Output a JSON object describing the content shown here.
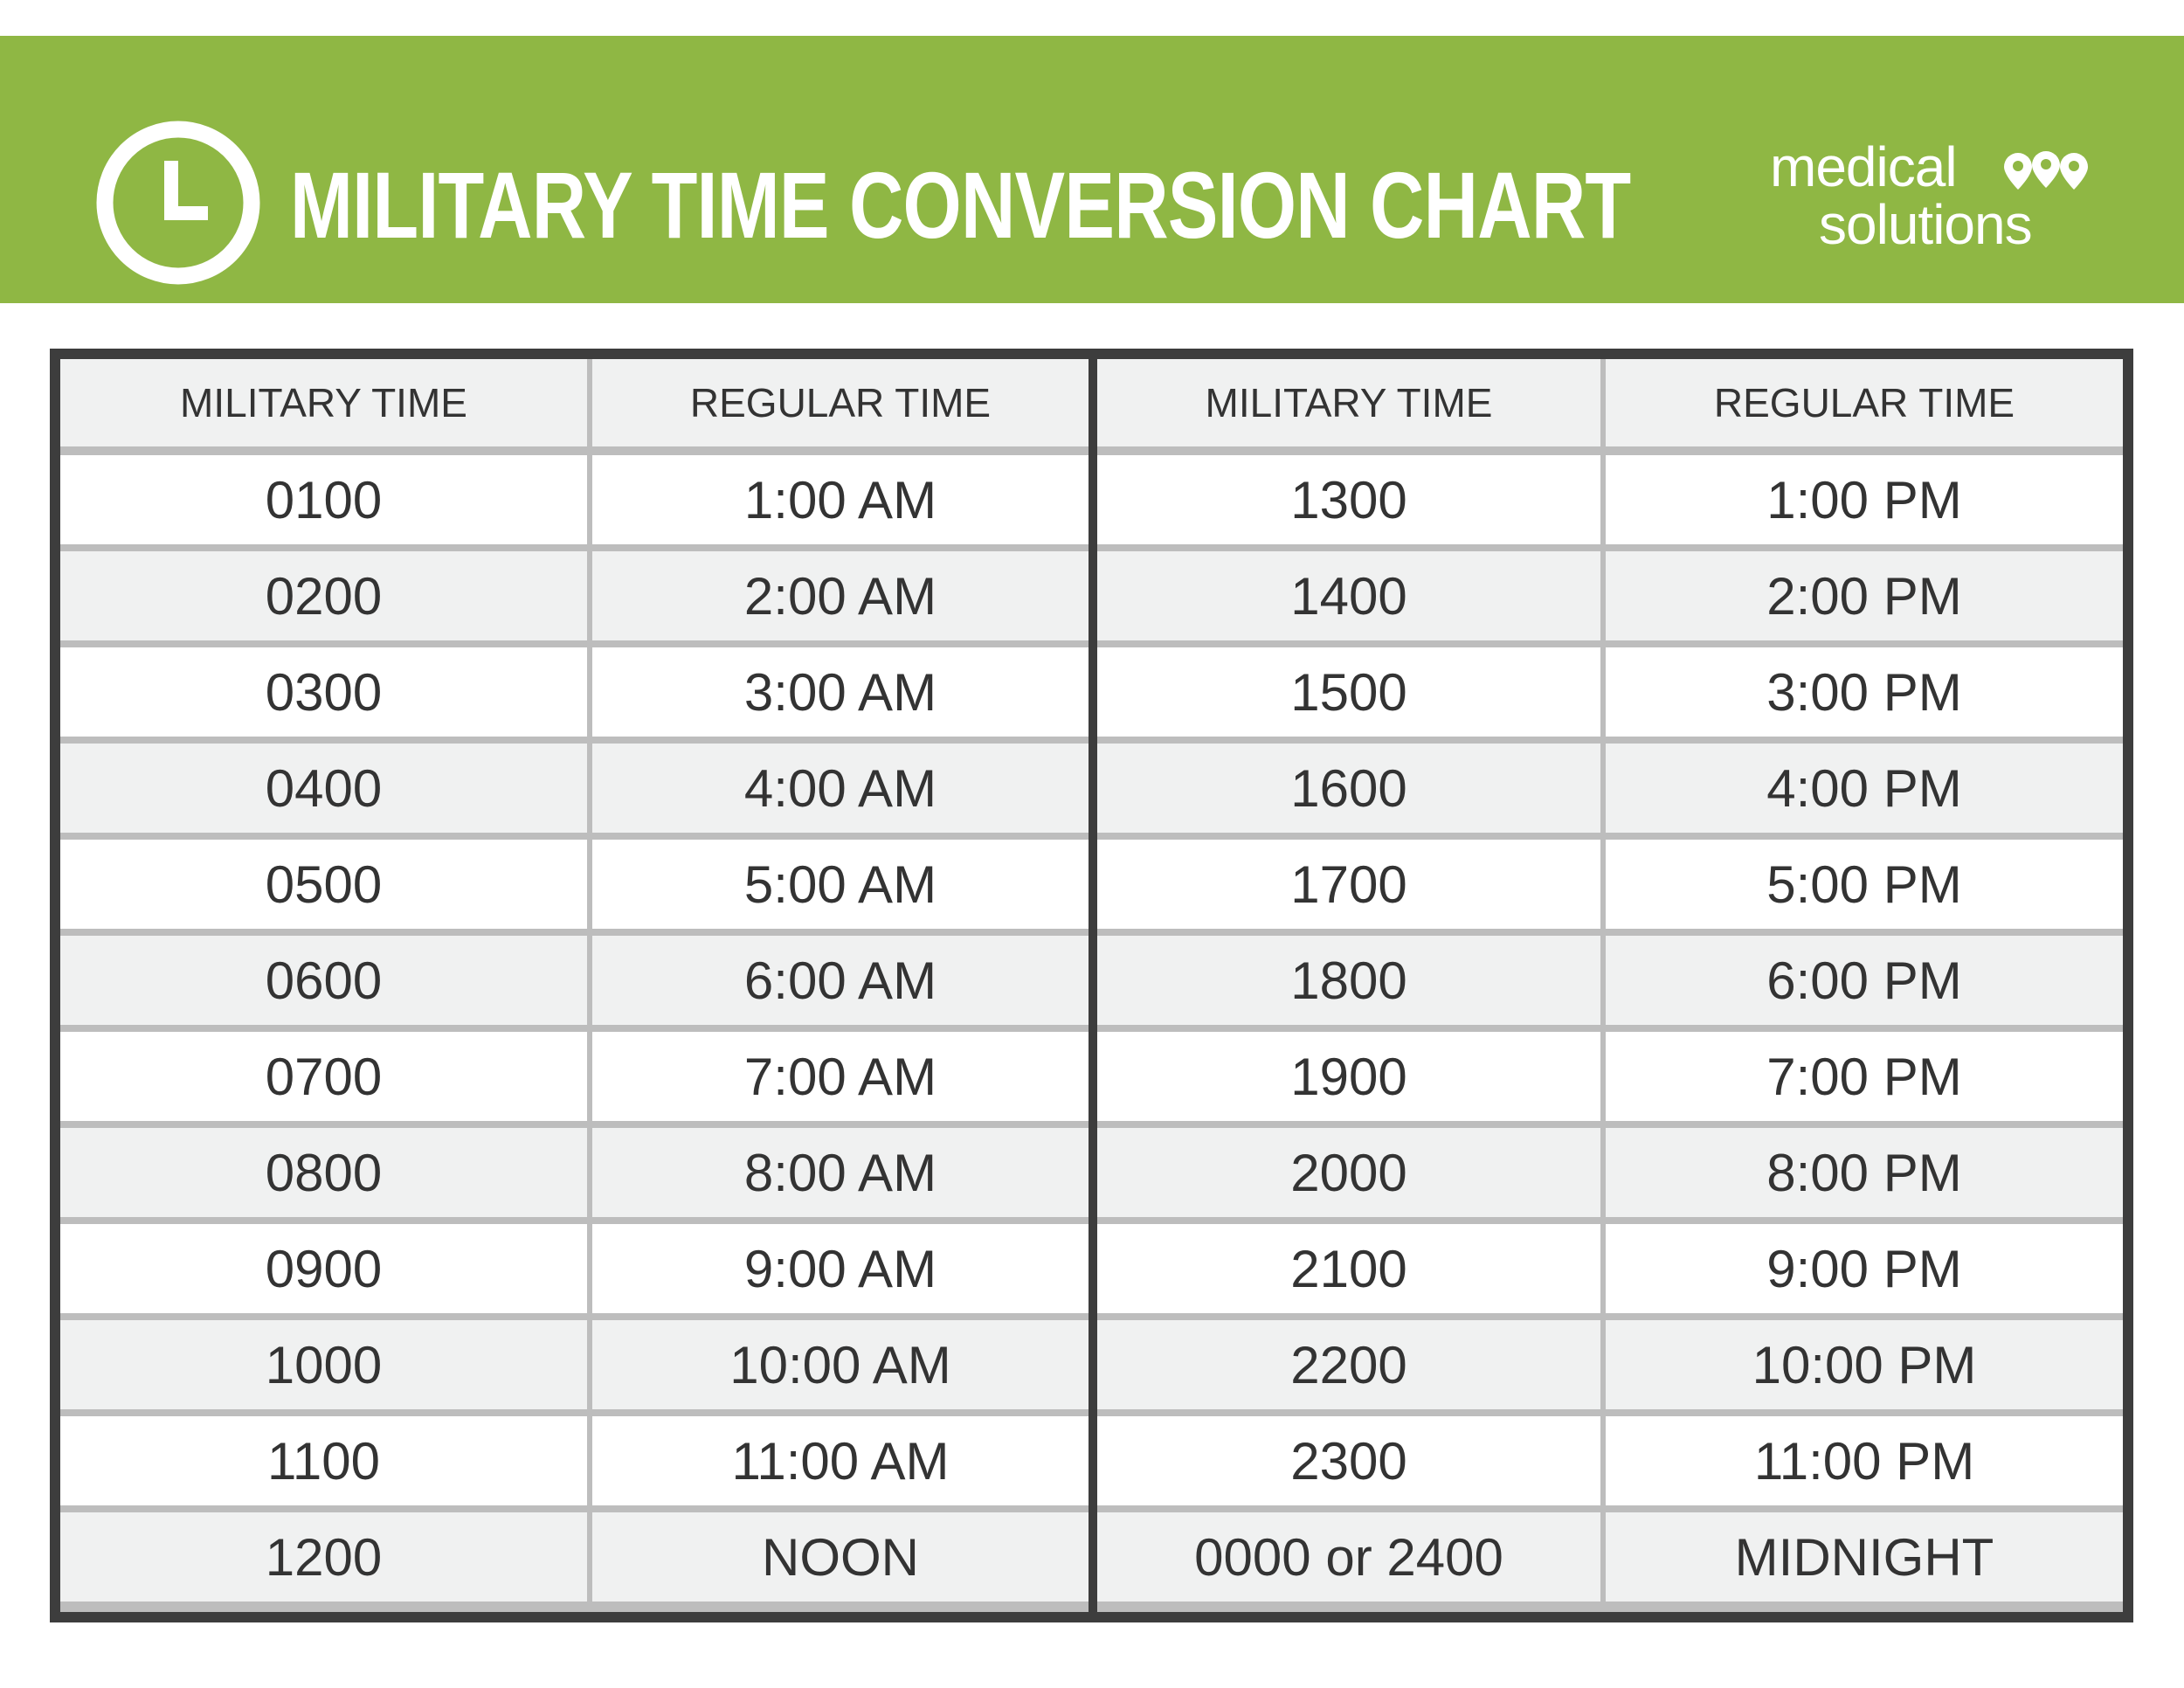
{
  "header": {
    "title": "MILITARY TIME CONVERSION CHART",
    "icon": "clock-icon",
    "brand_color": "#8fb744",
    "logo": {
      "line1": "medical",
      "line2": "solutions",
      "icon": "map-pin-trio-icon"
    }
  },
  "table": {
    "columns": [
      "MILITARY TIME",
      "REGULAR TIME",
      "MILITARY TIME",
      "REGULAR TIME"
    ],
    "rows": [
      [
        "0100",
        "1:00 AM",
        "1300",
        "1:00 PM"
      ],
      [
        "0200",
        "2:00 AM",
        "1400",
        "2:00 PM"
      ],
      [
        "0300",
        "3:00 AM",
        "1500",
        "3:00 PM"
      ],
      [
        "0400",
        "4:00 AM",
        "1600",
        "4:00 PM"
      ],
      [
        "0500",
        "5:00 AM",
        "1700",
        "5:00 PM"
      ],
      [
        "0600",
        "6:00 AM",
        "1800",
        "6:00 PM"
      ],
      [
        "0700",
        "7:00 AM",
        "1900",
        "7:00 PM"
      ],
      [
        "0800",
        "8:00 AM",
        "2000",
        "8:00 PM"
      ],
      [
        "0900",
        "9:00 AM",
        "2100",
        "9:00 PM"
      ],
      [
        "1000",
        "10:00 AM",
        "2200",
        "10:00 PM"
      ],
      [
        "1100",
        "11:00 AM",
        "2300",
        "11:00 PM"
      ],
      [
        "1200",
        "NOON",
        "0000 or 2400",
        "MIDNIGHT"
      ]
    ]
  }
}
